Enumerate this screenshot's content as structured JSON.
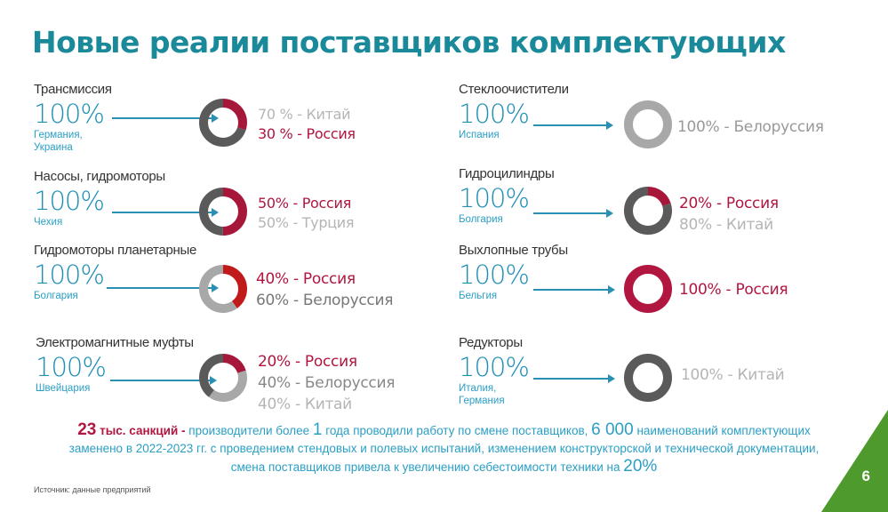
{
  "title": "Новые реалии поставщиков комплектующих",
  "blocks": [
    {
      "category": "Трансмиссия",
      "pct": "100%",
      "source": "Германия, Украина",
      "legend": [
        "70 % - Китай",
        "30 % - Россия"
      ]
    },
    {
      "category": "Насосы, гидромоторы",
      "pct": "100%",
      "source": "Чехия",
      "legend": [
        "50% - Россия",
        "50% - Турция"
      ]
    },
    {
      "category": "Гидромоторы планетарные",
      "pct": "100%",
      "source": "Болгария",
      "legend": [
        "40% - Россия",
        "60% - Белоруссия"
      ]
    },
    {
      "category": "Электромагнитные муфты",
      "pct": "100%",
      "source": "Швейцария",
      "legend": [
        "20% - Россия",
        "40% - Белоруссия",
        "40% - Китай"
      ]
    },
    {
      "category": "Стеклоочистители",
      "pct": "100%",
      "source": "Испания",
      "legend": [
        "100% - Белоруссия"
      ]
    },
    {
      "category": "Гидроцилиндры",
      "pct": "100%",
      "source": "Болгария",
      "legend": [
        "20% - Россия",
        "80% - Китай"
      ]
    },
    {
      "category": "Выхлопные трубы",
      "pct": "100%",
      "source": "Бельгия",
      "legend": [
        "100% - Россия"
      ]
    },
    {
      "category": "Редукторы",
      "pct": "100%",
      "source": "Италия, Германия",
      "legend": [
        "100% - Китай"
      ]
    }
  ],
  "donuts": [
    [
      {
        "v": 30,
        "c": "#a6173a"
      },
      {
        "v": 70,
        "c": "#5a5a5a"
      }
    ],
    [
      {
        "v": 50,
        "c": "#a6173a"
      },
      {
        "v": 50,
        "c": "#5a5a5a"
      }
    ],
    [
      {
        "v": 40,
        "c": "#c01a1a"
      },
      {
        "v": 60,
        "c": "#a8a8a8"
      }
    ],
    [
      {
        "v": 20,
        "c": "#a6173a"
      },
      {
        "v": 40,
        "c": "#a8a8a8"
      },
      {
        "v": 40,
        "c": "#5a5a5a"
      }
    ],
    [
      {
        "v": 100,
        "c": "#a8a8a8"
      }
    ],
    [
      {
        "v": 20,
        "c": "#a6173a"
      },
      {
        "v": 80,
        "c": "#5a5a5a"
      }
    ],
    [
      {
        "v": 100,
        "c": "#b0163f"
      }
    ],
    [
      {
        "v": 100,
        "c": "#5a5a5a"
      }
    ]
  ],
  "footer": {
    "n23": "23",
    "sanctions": "тыс. санкций -",
    "p1": "производители более",
    "n1": "1",
    "p2": "года проводили работу по смене поставщиков,",
    "n6000": "6 000",
    "p3": "наименований комплектующих",
    "line2": "заменено в 2022-2023 гг. с проведением стендовых и полевых испытаний, изменением конструкторской и технической документации,",
    "line3": "смена поставщиков привела к увеличению себестоимости техники на",
    "n20": "20%"
  },
  "source_note": "Источник: данные предприятий",
  "page_number": "6",
  "colors": {
    "title": "#1a8a9b",
    "accent_red": "#b0163f",
    "blue": "#1e8fb5",
    "green": "#4f9a2c"
  }
}
